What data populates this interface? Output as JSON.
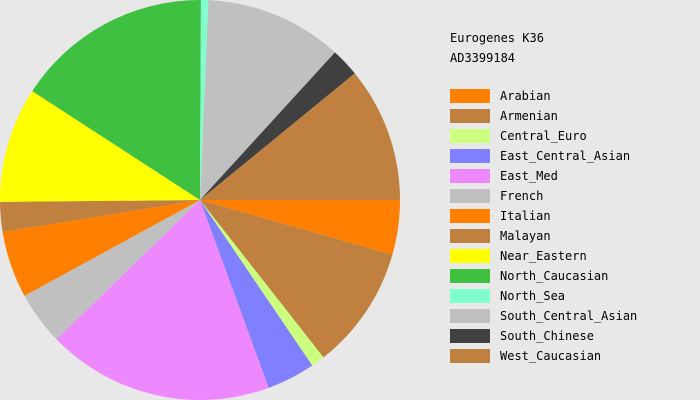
{
  "chart_data": {
    "type": "pie",
    "title": "Eurogenes K36",
    "subtitle": "AD3399184",
    "legend_position": "right",
    "slices": [
      {
        "label": "Arabian",
        "value": 4.4,
        "color": "#ff8000"
      },
      {
        "label": "Armenian",
        "value": 10.0,
        "color": "#c0803f"
      },
      {
        "label": "Central_Euro",
        "value": 1.1,
        "color": "#ccff80"
      },
      {
        "label": "East_Central_Asian",
        "value": 3.9,
        "color": "#8080ff"
      },
      {
        "label": "East_Med",
        "value": 18.3,
        "color": "#ee88ff"
      },
      {
        "label": "French",
        "value": 4.3,
        "color": "#c0c0c0"
      },
      {
        "label": "Italian",
        "value": 5.4,
        "color": "#ff8000"
      },
      {
        "label": "Malayan",
        "value": 2.4,
        "color": "#c0803f"
      },
      {
        "label": "Near_Eastern",
        "value": 9.3,
        "color": "#ffff00"
      },
      {
        "label": "North_Caucasian",
        "value": 15.9,
        "color": "#40c040"
      },
      {
        "label": "North_Sea",
        "value": 0.6,
        "color": "#80ffcc"
      },
      {
        "label": "South_Central_Asian",
        "value": 11.1,
        "color": "#c0c0c0"
      },
      {
        "label": "South_Chinese",
        "value": 2.3,
        "color": "#404040"
      },
      {
        "label": "West_Caucasian",
        "value": 10.9,
        "color": "#c0803f"
      }
    ]
  }
}
